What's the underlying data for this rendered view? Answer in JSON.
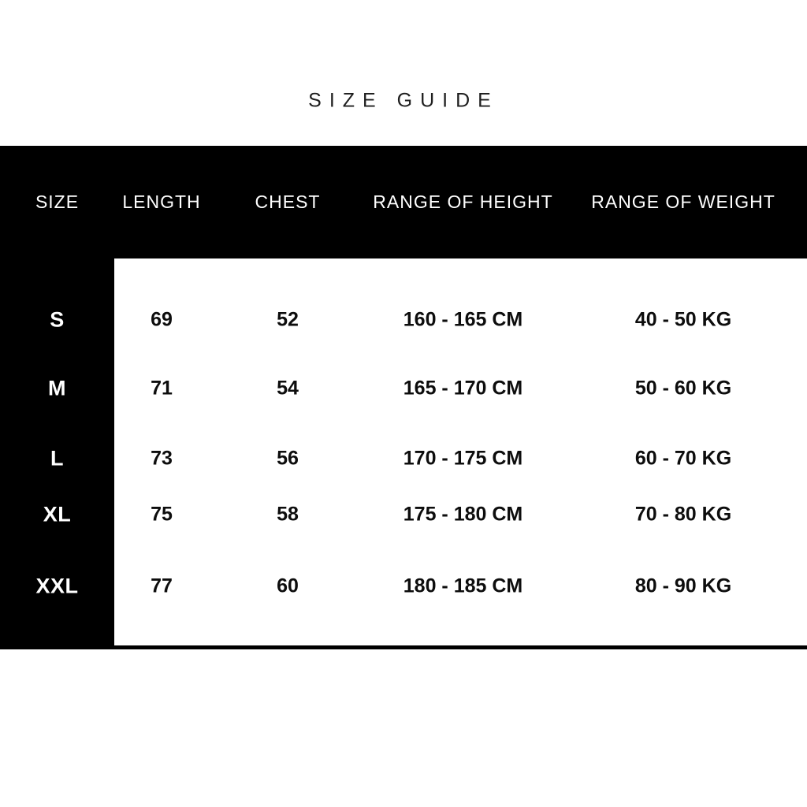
{
  "colors": {
    "background": "#ffffff",
    "panel": "#000000",
    "title": "#1e1e1e",
    "text_light": "#ffffff",
    "text_dark": "#0d0d0d"
  },
  "chart_data": {
    "type": "table",
    "title": "SIZE GUIDE",
    "columns": [
      "SIZE",
      "LENGTH",
      "CHEST",
      "RANGE OF HEIGHT",
      "RANGE OF WEIGHT"
    ],
    "rows": [
      [
        "S",
        69,
        52,
        "160 - 165 CM",
        "40 - 50 KG"
      ],
      [
        "M",
        71,
        54,
        "165 - 170 CM",
        "50 - 60 KG"
      ],
      [
        "L",
        73,
        56,
        "170 - 175 CM",
        "60 - 70 KG"
      ],
      [
        "XL",
        75,
        58,
        "175 - 180 CM",
        "70 - 80 KG"
      ],
      [
        "XXL",
        77,
        60,
        "180 - 185 CM",
        "80 - 90 KG"
      ]
    ]
  }
}
